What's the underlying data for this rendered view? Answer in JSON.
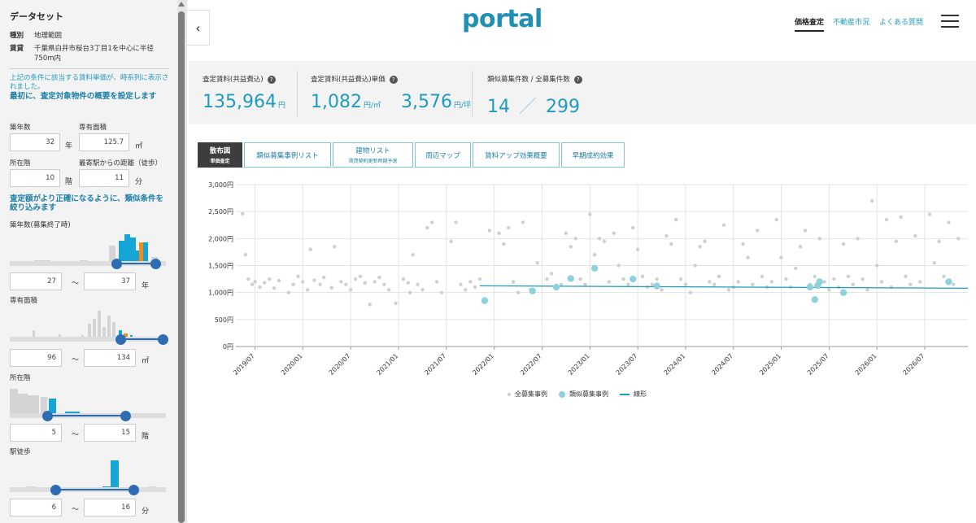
{
  "sidebar": {
    "title": "データセット",
    "rows": [
      {
        "key": "種別",
        "value": "地理範囲"
      },
      {
        "key": "賃貸",
        "value": "千葉県白井市桜台3丁目1を中心に半径750m内"
      }
    ],
    "note": "上記の条件に該当する賃料単価が、時系列に表示されました。",
    "heading1": "最初に、査定対象物件の概要を設定します",
    "age_label": "築年数",
    "age_value": "32",
    "age_unit": "年",
    "area_label": "専有面積",
    "area_value": "125.7",
    "area_unit": "㎡",
    "floor_label": "所在階",
    "floor_value": "10",
    "floor_unit": "階",
    "walk_label": "最寄駅からの距離（徒歩）",
    "walk_value": "11",
    "walk_unit": "分",
    "heading2": "査定額がより正確になるように、類似条件を絞り込みます",
    "filters": [
      {
        "label": "築年数(募集終了時)",
        "min": "27",
        "max": "37",
        "unit": "年",
        "sep": "〜",
        "range_frac": [
          0.68,
          0.93
        ]
      },
      {
        "label": "専有面積",
        "min": "96",
        "max": "134",
        "unit": "㎡",
        "sep": "〜",
        "range_frac": [
          0.71,
          0.98
        ]
      },
      {
        "label": "所在階",
        "min": "5",
        "max": "15",
        "unit": "階",
        "sep": "〜",
        "range_frac": [
          0.24,
          0.74
        ]
      },
      {
        "label": "駅徒歩",
        "min": "6",
        "max": "16",
        "unit": "分",
        "sep": "〜",
        "range_frac": [
          0.29,
          0.79
        ]
      }
    ]
  },
  "header": {
    "collapse_icon": "‹",
    "logo": "portal",
    "nav": [
      "価格査定",
      "不動産市況",
      "よくある質問"
    ]
  },
  "stats": [
    {
      "label": "査定賃料(共益費込)",
      "value": "135,964",
      "unit": "円"
    },
    {
      "label": "査定賃料(共益費込)単価",
      "value": "1,082",
      "unit": "円/㎡",
      "value2": "3,576",
      "unit2": "円/坪"
    },
    {
      "label": "類似募集件数 / 全募集件数",
      "value": "14",
      "sep": "／",
      "value2": "299"
    }
  ],
  "help_icon": "?",
  "tabs": [
    {
      "label": "散布図",
      "sub": "単価査定"
    },
    {
      "label": "類似募集事例リスト",
      "sub": ""
    },
    {
      "label": "建物リスト",
      "sub": "賃貸契約更新時期予測"
    },
    {
      "label": "周辺マップ",
      "sub": ""
    },
    {
      "label": "賃料アップ効果概要",
      "sub": ""
    },
    {
      "label": "早期成約効果",
      "sub": ""
    }
  ],
  "chart_data": {
    "type": "scatter",
    "ylim": [
      0,
      3000
    ],
    "y_ticks": [
      "0円",
      "500円",
      "1,000円",
      "1,500円",
      "2,000円",
      "2,500円",
      "3,000円"
    ],
    "x_ticks": [
      "2019/07",
      "2020/01",
      "2020/07",
      "2021/01",
      "2021/07",
      "2022/01",
      "2022/07",
      "2023/01",
      "2023/07",
      "2024/01",
      "2024/07",
      "2025/01",
      "2025/07",
      "2026/01",
      "2026/07"
    ],
    "x_range": [
      2019.3,
      2026.95
    ],
    "grid": true,
    "legend": [
      "全募集事例",
      "類似募集事例",
      "線形"
    ],
    "series": [
      {
        "name": "全募集事例",
        "points": [
          [
            2019.37,
            2460
          ],
          [
            2019.4,
            1700
          ],
          [
            2019.43,
            1250
          ],
          [
            2019.47,
            1150
          ],
          [
            2019.5,
            1200
          ],
          [
            2019.55,
            1100
          ],
          [
            2019.6,
            1180
          ],
          [
            2019.65,
            1250
          ],
          [
            2019.7,
            1080
          ],
          [
            2019.75,
            1220
          ],
          [
            2019.85,
            1000
          ],
          [
            2019.9,
            1150
          ],
          [
            2019.95,
            1300
          ],
          [
            2020.0,
            1200
          ],
          [
            2020.05,
            1050
          ],
          [
            2020.08,
            1800
          ],
          [
            2020.12,
            1230
          ],
          [
            2020.18,
            1150
          ],
          [
            2020.22,
            1280
          ],
          [
            2020.3,
            1090
          ],
          [
            2020.33,
            1850
          ],
          [
            2020.4,
            1200
          ],
          [
            2020.45,
            1150
          ],
          [
            2020.5,
            1050
          ],
          [
            2020.55,
            1250
          ],
          [
            2020.6,
            1300
          ],
          [
            2020.65,
            1180
          ],
          [
            2020.7,
            780
          ],
          [
            2020.75,
            1200
          ],
          [
            2020.8,
            1280
          ],
          [
            2020.85,
            1150
          ],
          [
            2020.9,
            1050
          ],
          [
            2020.97,
            800
          ],
          [
            2021.05,
            1250
          ],
          [
            2021.1,
            1180
          ],
          [
            2021.12,
            1000
          ],
          [
            2021.15,
            1700
          ],
          [
            2021.2,
            1150
          ],
          [
            2021.25,
            1050
          ],
          [
            2021.3,
            2200
          ],
          [
            2021.35,
            2300
          ],
          [
            2021.4,
            1200
          ],
          [
            2021.45,
            1000
          ],
          [
            2021.55,
            1950
          ],
          [
            2021.6,
            2300
          ],
          [
            2021.65,
            1150
          ],
          [
            2021.7,
            1050
          ],
          [
            2021.75,
            1200
          ],
          [
            2021.8,
            1100
          ],
          [
            2021.85,
            1250
          ],
          [
            2021.95,
            2150
          ],
          [
            2022.05,
            2100
          ],
          [
            2022.1,
            1900
          ],
          [
            2022.15,
            2200
          ],
          [
            2022.2,
            1200
          ],
          [
            2022.25,
            1000
          ],
          [
            2022.3,
            2300
          ],
          [
            2022.38,
            1050
          ],
          [
            2022.45,
            1550
          ],
          [
            2022.55,
            1250
          ],
          [
            2022.6,
            1350
          ],
          [
            2022.7,
            1150
          ],
          [
            2022.75,
            2100
          ],
          [
            2022.8,
            1850
          ],
          [
            2022.85,
            2000
          ],
          [
            2022.9,
            1250
          ],
          [
            2022.95,
            1150
          ],
          [
            2023.0,
            2450
          ],
          [
            2023.05,
            1700
          ],
          [
            2023.1,
            2000
          ],
          [
            2023.15,
            1950
          ],
          [
            2023.2,
            1200
          ],
          [
            2023.25,
            2100
          ],
          [
            2023.3,
            1500
          ],
          [
            2023.35,
            1250
          ],
          [
            2023.4,
            1150
          ],
          [
            2023.45,
            2200
          ],
          [
            2023.5,
            1800
          ],
          [
            2023.55,
            1300
          ],
          [
            2023.6,
            1100
          ],
          [
            2023.65,
            1150
          ],
          [
            2023.7,
            1250
          ],
          [
            2023.75,
            1050
          ],
          [
            2023.8,
            2050
          ],
          [
            2023.85,
            1900
          ],
          [
            2023.9,
            2350
          ],
          [
            2023.95,
            1250
          ],
          [
            2024.0,
            1150
          ],
          [
            2024.05,
            1000
          ],
          [
            2024.1,
            1500
          ],
          [
            2024.15,
            1850
          ],
          [
            2024.2,
            1950
          ],
          [
            2024.25,
            1200
          ],
          [
            2024.3,
            1150
          ],
          [
            2024.35,
            1300
          ],
          [
            2024.4,
            2250
          ],
          [
            2024.45,
            1050
          ],
          [
            2024.5,
            1100
          ],
          [
            2024.55,
            1200
          ],
          [
            2024.6,
            1900
          ],
          [
            2024.65,
            1650
          ],
          [
            2024.7,
            1150
          ],
          [
            2024.75,
            2150
          ],
          [
            2024.8,
            1300
          ],
          [
            2024.85,
            1100
          ],
          [
            2024.9,
            1200
          ],
          [
            2024.95,
            2350
          ],
          [
            2025.0,
            1650
          ],
          [
            2025.05,
            1250
          ],
          [
            2025.1,
            1100
          ],
          [
            2025.15,
            1450
          ],
          [
            2025.2,
            1850
          ],
          [
            2025.25,
            2150
          ],
          [
            2025.3,
            1150
          ],
          [
            2025.35,
            1300
          ],
          [
            2025.4,
            2000
          ],
          [
            2025.45,
            1200
          ],
          [
            2025.5,
            1050
          ],
          [
            2025.55,
            1250
          ],
          [
            2025.6,
            1100
          ],
          [
            2025.65,
            1900
          ],
          [
            2025.7,
            1300
          ],
          [
            2025.75,
            1150
          ],
          [
            2025.8,
            2000
          ],
          [
            2025.85,
            1250
          ],
          [
            2025.9,
            1050
          ],
          [
            2025.95,
            2700
          ],
          [
            2026.0,
            1500
          ],
          [
            2026.05,
            1200
          ],
          [
            2026.1,
            2350
          ],
          [
            2026.15,
            1100
          ],
          [
            2026.2,
            1950
          ],
          [
            2026.25,
            2400
          ],
          [
            2026.3,
            1300
          ],
          [
            2026.35,
            1150
          ],
          [
            2026.4,
            2050
          ],
          [
            2026.45,
            1200
          ],
          [
            2026.55,
            2450
          ],
          [
            2026.6,
            1550
          ],
          [
            2026.65,
            1950
          ],
          [
            2026.7,
            1300
          ],
          [
            2026.75,
            2300
          ],
          [
            2026.8,
            1150
          ],
          [
            2026.85,
            2000
          ]
        ]
      },
      {
        "name": "類似募集事例",
        "points": [
          [
            2021.9,
            850
          ],
          [
            2022.4,
            1030
          ],
          [
            2022.65,
            1100
          ],
          [
            2022.8,
            1260
          ],
          [
            2023.05,
            1450
          ],
          [
            2023.45,
            1250
          ],
          [
            2023.7,
            1120
          ],
          [
            2025.3,
            1100
          ],
          [
            2025.35,
            870
          ],
          [
            2025.38,
            1130
          ],
          [
            2025.4,
            1200
          ],
          [
            2025.65,
            1000
          ],
          [
            2026.75,
            1200
          ]
        ]
      },
      {
        "name": "線形",
        "points": [
          [
            2021.85,
            1125
          ],
          [
            2026.95,
            1080
          ]
        ]
      }
    ]
  }
}
